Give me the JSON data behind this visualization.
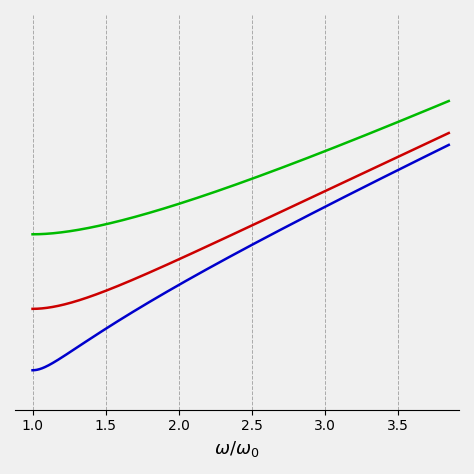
{
  "xlabel": "$\\omega/\\omega_0$",
  "xlim": [
    0.88,
    3.92
  ],
  "ylim": [
    -0.05,
    0.85
  ],
  "xticks": [
    1.0,
    1.5,
    2.0,
    2.5,
    3.0,
    3.5
  ],
  "grid_color": "#aaaaaa",
  "background_color": "#f0f0f0",
  "line_colors": [
    "#00bb00",
    "#cc0000",
    "#0000cc"
  ],
  "line_width": 1.8,
  "xlabel_fontsize": 13,
  "xlabel_fontweight": "bold",
  "tick_fontsize": 10,
  "gp_values": [
    0.35,
    0.18,
    0.04
  ],
  "scale_factor": 6.5
}
